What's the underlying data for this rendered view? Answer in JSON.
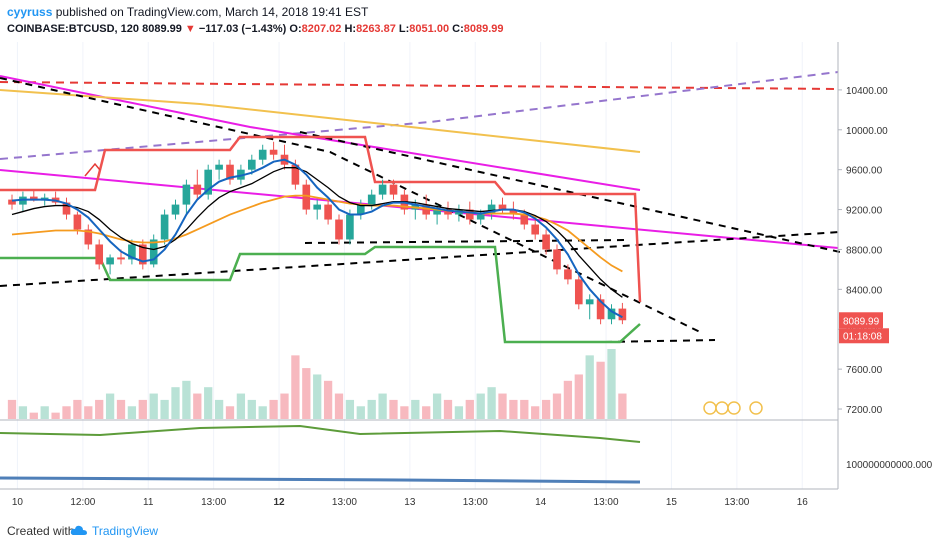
{
  "header": {
    "user": "cyyruss",
    "published_text": "published on TradingView.com, March 14, 2018 19:41 EST",
    "symbol": "COINBASE:BTCUSD, 120",
    "last": "8089.99",
    "change": "−117.03 (−1.43%)",
    "o_label": "O:",
    "o": "8207.02",
    "h_label": "H:",
    "h": "8263.87",
    "l_label": "L:",
    "l": "8051.00",
    "c_label": "C:",
    "c": "8089.99"
  },
  "footer": {
    "created_with": "Created with",
    "brand": "TradingView"
  },
  "colors": {
    "up": "#26a69a",
    "down": "#ef5350",
    "up_vol": "#b9e2d6",
    "down_vol": "#f7b9bf",
    "sma_blue": "#1565c0",
    "ema_black": "#000000",
    "orange": "#f59b1f",
    "cloud_red": "#ef5350",
    "cloud_green": "#4caf50",
    "magenta": "#e91ee6",
    "purple_dash": "#9575cd",
    "red_dash": "#e53935"
  },
  "chart_data": {
    "type": "candlestick",
    "y_axis": {
      "min": 7100,
      "max": 10800,
      "ticks": [
        7200,
        7600,
        8000,
        8400,
        8800,
        9200,
        9600,
        10000,
        10400
      ],
      "tick_labels": [
        "7200.00",
        "7600.00",
        "8000.00",
        "8400.00",
        "8800.00",
        "9200.00",
        "9600.00",
        "10000.00",
        "10400.00"
      ]
    },
    "x_axis": {
      "labels": [
        "10",
        "12:00",
        "11",
        "13:00",
        "12",
        "13:00",
        "13",
        "13:00",
        "14",
        "13:00",
        "15",
        "13:00",
        "16"
      ],
      "label_bold": [
        false,
        false,
        false,
        false,
        true,
        false,
        false,
        false,
        false,
        false,
        false,
        false,
        false
      ],
      "label_bar_index": [
        0.5,
        6.5,
        12.5,
        18.5,
        24.5,
        30.5,
        36.5,
        42.5,
        48.5,
        54.5,
        60.5,
        66.5,
        72.5
      ]
    },
    "last_price_label": "8089.99",
    "countdown_label": "01:18:08",
    "oscillator_label": "100000000000.0000",
    "candles": [
      [
        9300,
        9350,
        9200,
        9250
      ],
      [
        9250,
        9380,
        9180,
        9330
      ],
      [
        9330,
        9400,
        9280,
        9290
      ],
      [
        9290,
        9360,
        9240,
        9320
      ],
      [
        9320,
        9380,
        9250,
        9270
      ],
      [
        9270,
        9320,
        9100,
        9150
      ],
      [
        9150,
        9180,
        8950,
        9000
      ],
      [
        9000,
        9050,
        8800,
        8850
      ],
      [
        8850,
        8900,
        8600,
        8650
      ],
      [
        8650,
        8750,
        8550,
        8720
      ],
      [
        8720,
        8800,
        8650,
        8700
      ],
      [
        8700,
        8900,
        8650,
        8850
      ],
      [
        8850,
        8900,
        8600,
        8650
      ],
      [
        8650,
        8950,
        8620,
        8900
      ],
      [
        8900,
        9200,
        8850,
        9150
      ],
      [
        9150,
        9300,
        9100,
        9250
      ],
      [
        9250,
        9500,
        9150,
        9450
      ],
      [
        9450,
        9600,
        9300,
        9350
      ],
      [
        9350,
        9650,
        9300,
        9600
      ],
      [
        9600,
        9700,
        9500,
        9650
      ],
      [
        9650,
        9700,
        9450,
        9500
      ],
      [
        9500,
        9650,
        9450,
        9600
      ],
      [
        9600,
        9750,
        9550,
        9700
      ],
      [
        9700,
        9850,
        9650,
        9800
      ],
      [
        9800,
        9880,
        9700,
        9750
      ],
      [
        9750,
        9850,
        9600,
        9650
      ],
      [
        9650,
        9700,
        9400,
        9450
      ],
      [
        9450,
        9500,
        9150,
        9200
      ],
      [
        9200,
        9300,
        9100,
        9250
      ],
      [
        9250,
        9300,
        9050,
        9100
      ],
      [
        9100,
        9150,
        8850,
        8900
      ],
      [
        8900,
        9200,
        8850,
        9150
      ],
      [
        9150,
        9300,
        9100,
        9250
      ],
      [
        9250,
        9400,
        9200,
        9350
      ],
      [
        9350,
        9500,
        9300,
        9450
      ],
      [
        9450,
        9500,
        9300,
        9350
      ],
      [
        9350,
        9400,
        9150,
        9200
      ],
      [
        9200,
        9300,
        9100,
        9250
      ],
      [
        9250,
        9350,
        9100,
        9150
      ],
      [
        9150,
        9250,
        9050,
        9200
      ],
      [
        9200,
        9280,
        9100,
        9150
      ],
      [
        9150,
        9250,
        9080,
        9200
      ],
      [
        9200,
        9280,
        9050,
        9100
      ],
      [
        9100,
        9200,
        9050,
        9150
      ],
      [
        9150,
        9300,
        9100,
        9250
      ],
      [
        9250,
        9320,
        9150,
        9200
      ],
      [
        9200,
        9280,
        9100,
        9150
      ],
      [
        9150,
        9200,
        9000,
        9050
      ],
      [
        9050,
        9100,
        8900,
        8950
      ],
      [
        8950,
        9000,
        8750,
        8800
      ],
      [
        8800,
        8850,
        8550,
        8600
      ],
      [
        8600,
        8650,
        8450,
        8500
      ],
      [
        8500,
        8550,
        8200,
        8250
      ],
      [
        8250,
        8350,
        8100,
        8300
      ],
      [
        8300,
        8350,
        8050,
        8100
      ],
      [
        8100,
        8250,
        8050,
        8207
      ],
      [
        8207.02,
        8263.87,
        8051.0,
        8089.99
      ]
    ],
    "volume": [
      3,
      2,
      1,
      2,
      1,
      2,
      3,
      2,
      3,
      4,
      3,
      2,
      3,
      4,
      3,
      5,
      6,
      4,
      5,
      3,
      2,
      4,
      3,
      2,
      3,
      4,
      10,
      8,
      7,
      6,
      4,
      3,
      2,
      3,
      4,
      3,
      2,
      3,
      2,
      4,
      3,
      2,
      3,
      4,
      5,
      4,
      3,
      3,
      2,
      3,
      4,
      6,
      7,
      10,
      9,
      11,
      4
    ],
    "volume_colors": [
      "down",
      "up",
      "down",
      "up",
      "down",
      "down",
      "down",
      "down",
      "down",
      "up",
      "down",
      "up",
      "down",
      "up",
      "up",
      "up",
      "up",
      "down",
      "up",
      "up",
      "down",
      "up",
      "up",
      "up",
      "down",
      "down",
      "down",
      "down",
      "up",
      "down",
      "down",
      "up",
      "up",
      "up",
      "up",
      "down",
      "down",
      "up",
      "down",
      "up",
      "down",
      "up",
      "down",
      "up",
      "up",
      "down",
      "down",
      "down",
      "down",
      "down",
      "down",
      "down",
      "down",
      "up",
      "down",
      "up",
      "down"
    ],
    "sma_blue": [
      9290,
      9300,
      9300,
      9300,
      9290,
      9260,
      9200,
      9120,
      9000,
      8880,
      8780,
      8720,
      8680,
      8700,
      8800,
      8950,
      9150,
      9300,
      9400,
      9480,
      9520,
      9540,
      9570,
      9620,
      9680,
      9700,
      9650,
      9550,
      9420,
      9320,
      9200,
      9150,
      9150,
      9180,
      9240,
      9270,
      9270,
      9250,
      9230,
      9210,
      9190,
      9180,
      9170,
      9160,
      9180,
      9200,
      9200,
      9170,
      9110,
      9020,
      8900,
      8750,
      8550,
      8400,
      8280,
      8180,
      8120
    ],
    "ema_black": [
      9150,
      9180,
      9210,
      9230,
      9240,
      9240,
      9220,
      9180,
      9100,
      9000,
      8920,
      8860,
      8820,
      8800,
      8830,
      8900,
      9000,
      9120,
      9230,
      9320,
      9380,
      9420,
      9460,
      9520,
      9580,
      9620,
      9620,
      9580,
      9500,
      9420,
      9330,
      9270,
      9240,
      9240,
      9260,
      9280,
      9280,
      9270,
      9250,
      9230,
      9210,
      9200,
      9190,
      9180,
      9190,
      9200,
      9200,
      9180,
      9140,
      9080,
      8990,
      8880,
      8740,
      8620,
      8500,
      8400,
      8320
    ],
    "orange": [
      8950,
      8960,
      8970,
      8980,
      8990,
      8990,
      8990,
      8980,
      8960,
      8930,
      8900,
      8880,
      8870,
      8870,
      8880,
      8910,
      8950,
      9000,
      9050,
      9100,
      9150,
      9190,
      9230,
      9270,
      9300,
      9330,
      9340,
      9340,
      9320,
      9300,
      9280,
      9260,
      9250,
      9240,
      9240,
      9240,
      9230,
      9220,
      9210,
      9200,
      9190,
      9180,
      9170,
      9160,
      9160,
      9160,
      9160,
      9150,
      9130,
      9100,
      9050,
      8990,
      8900,
      8810,
      8720,
      8640,
      8580
    ]
  }
}
